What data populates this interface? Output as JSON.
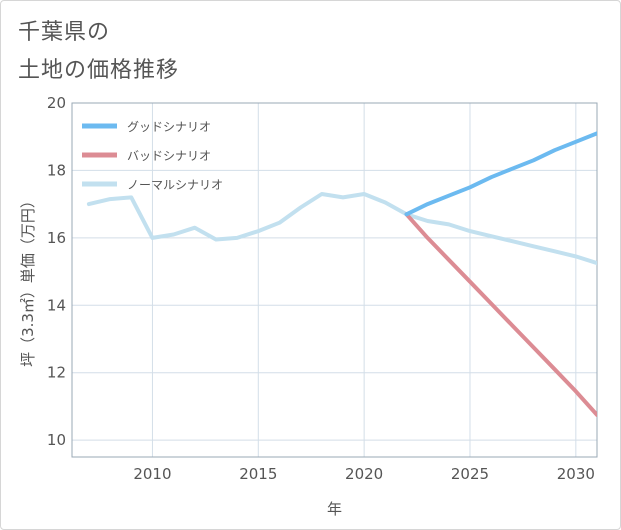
{
  "title_lines": [
    "千葉県の",
    "土地の価格推移"
  ],
  "colors": {
    "good": "#6cbaf0",
    "bad": "#dc8c94",
    "normal": "#c2e0ef",
    "grid": "#d3dee8",
    "axis": "#555555"
  },
  "chart_data": {
    "type": "line",
    "title": "千葉県の土地の価格推移",
    "xlabel": "年",
    "ylabel": "坪（3.3㎡）単価（万円）",
    "xlim": [
      2006.2,
      2031
    ],
    "ylim": [
      9.5,
      20
    ],
    "x_ticks": [
      2010,
      2015,
      2020,
      2025,
      2030
    ],
    "y_ticks": [
      10,
      12,
      14,
      16,
      18,
      20
    ],
    "grid": true,
    "legend_position": "top-left",
    "series": [
      {
        "name": "グッドシナリオ",
        "color_key": "good",
        "x": [
          2022,
          2023,
          2024,
          2025,
          2026,
          2027,
          2028,
          2029,
          2030,
          2031
        ],
        "y": [
          16.7,
          17.0,
          17.25,
          17.5,
          17.8,
          18.05,
          18.3,
          18.6,
          18.85,
          19.1
        ]
      },
      {
        "name": "バッドシナリオ",
        "color_key": "bad",
        "x": [
          2022,
          2023,
          2024,
          2025,
          2026,
          2027,
          2028,
          2029,
          2030,
          2031
        ],
        "y": [
          16.7,
          16.0,
          15.35,
          14.7,
          14.05,
          13.4,
          12.75,
          12.1,
          11.45,
          10.75
        ]
      },
      {
        "name": "ノーマルシナリオ",
        "color_key": "normal",
        "x": [
          2007,
          2008,
          2009,
          2010,
          2011,
          2012,
          2013,
          2014,
          2015,
          2016,
          2017,
          2018,
          2019,
          2020,
          2021,
          2022,
          2023,
          2024,
          2025,
          2026,
          2027,
          2028,
          2029,
          2030,
          2031
        ],
        "y": [
          17.0,
          17.15,
          17.2,
          16.0,
          16.1,
          16.3,
          15.95,
          16.0,
          16.2,
          16.45,
          16.9,
          17.3,
          17.2,
          17.3,
          17.05,
          16.7,
          16.5,
          16.4,
          16.2,
          16.05,
          15.9,
          15.75,
          15.6,
          15.45,
          15.25
        ]
      }
    ]
  }
}
